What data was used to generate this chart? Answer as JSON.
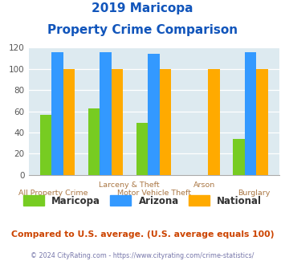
{
  "title_line1": "2019 Maricopa",
  "title_line2": "Property Crime Comparison",
  "categories": [
    "All Property Crime",
    "Larceny & Theft",
    "Motor Vehicle Theft",
    "Arson",
    "Burglary"
  ],
  "maricopa": [
    57,
    63,
    49,
    0,
    34
  ],
  "arizona": [
    116,
    116,
    114,
    0,
    116
  ],
  "national": [
    100,
    100,
    100,
    100,
    100
  ],
  "colors": {
    "maricopa": "#77cc22",
    "arizona": "#3399ff",
    "national": "#ffaa00"
  },
  "ylim": [
    0,
    120
  ],
  "yticks": [
    0,
    20,
    40,
    60,
    80,
    100,
    120
  ],
  "bg_color": "#ddeaf0",
  "title_color": "#1155bb",
  "xlabel_top_color": "#aa7744",
  "xlabel_bot_color": "#aa7744",
  "footer_text": "Compared to U.S. average. (U.S. average equals 100)",
  "copyright_text": "© 2024 CityRating.com - https://www.cityrating.com/crime-statistics/",
  "footer_color": "#cc4400",
  "copyright_color": "#7777aa",
  "legend_labels": [
    "Maricopa",
    "Arizona",
    "National"
  ],
  "bar_width": 0.24,
  "group_positions": [
    0,
    1,
    2,
    3,
    4
  ],
  "xtick_top_labels": [
    "",
    "Larceny & Theft",
    "",
    "Arson",
    ""
  ],
  "xtick_bot_labels": [
    "All Property Crime",
    "",
    "Motor Vehicle Theft",
    "",
    "Burglary"
  ]
}
